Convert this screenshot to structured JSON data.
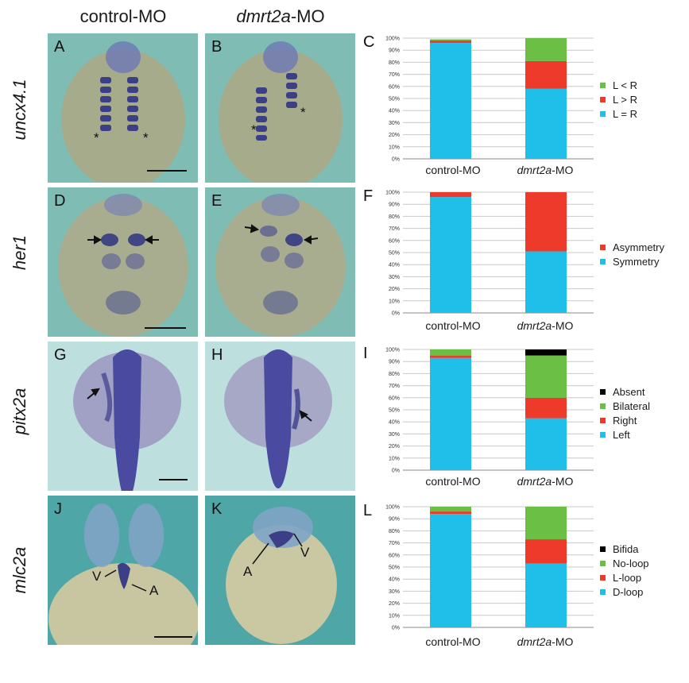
{
  "columns": {
    "control": "control-MO",
    "morphant_gene": "dmrt2a",
    "morphant_suffix": "-MO"
  },
  "rows": [
    "uncx4.1",
    "her1",
    "pitx2a",
    "mlc2a"
  ],
  "panel_letters": [
    "A",
    "B",
    "D",
    "E",
    "G",
    "H",
    "J",
    "K"
  ],
  "annotations": {
    "star": "*",
    "V": "V",
    "A": "A"
  },
  "colors": {
    "light_blue": "#1fbfe9",
    "red": "#ee3a2a",
    "green": "#6cbf45",
    "black": "#000000",
    "grid": "#c8c8c8"
  },
  "chart_data": [
    {
      "letter": "C",
      "type": "bar",
      "stacked": true,
      "categories": [
        "control-MO",
        "dmrt2a-MO"
      ],
      "series": [
        {
          "name": "L = R",
          "color": "#1fbfe9",
          "values": [
            96,
            58
          ]
        },
        {
          "name": "L > R",
          "color": "#ee3a2a",
          "values": [
            2,
            23
          ]
        },
        {
          "name": "L < R",
          "color": "#6cbf45",
          "values": [
            1,
            19
          ]
        }
      ],
      "ylim": [
        0,
        100
      ],
      "yticks": [
        "0%",
        "10%",
        "20%",
        "30%",
        "40%",
        "50%",
        "60%",
        "70%",
        "80%",
        "90%",
        "100%"
      ],
      "grid": true,
      "legend": "right"
    },
    {
      "letter": "F",
      "type": "bar",
      "stacked": true,
      "categories": [
        "control-MO",
        "dmrt2a-MO"
      ],
      "series": [
        {
          "name": "Symmetry",
          "color": "#1fbfe9",
          "values": [
            96,
            51
          ]
        },
        {
          "name": "Asymmetry",
          "color": "#ee3a2a",
          "values": [
            4,
            49
          ]
        }
      ],
      "ylim": [
        0,
        100
      ],
      "yticks": [
        "0%",
        "10%",
        "20%",
        "30%",
        "40%",
        "50%",
        "60%",
        "70%",
        "80%",
        "90%",
        "100%"
      ],
      "grid": true,
      "legend": "right"
    },
    {
      "letter": "I",
      "type": "bar",
      "stacked": true,
      "categories": [
        "control-MO",
        "dmrt2a-MO"
      ],
      "series": [
        {
          "name": "Left",
          "color": "#1fbfe9",
          "values": [
            93,
            43
          ]
        },
        {
          "name": "Right",
          "color": "#ee3a2a",
          "values": [
            2,
            17
          ]
        },
        {
          "name": "Bilateral",
          "color": "#6cbf45",
          "values": [
            5,
            35
          ]
        },
        {
          "name": "Absent",
          "color": "#000000",
          "values": [
            0,
            5
          ]
        }
      ],
      "ylim": [
        0,
        100
      ],
      "yticks": [
        "0%",
        "10%",
        "20%",
        "30%",
        "40%",
        "50%",
        "60%",
        "70%",
        "80%",
        "90%",
        "100%"
      ],
      "grid": true,
      "legend": "right"
    },
    {
      "letter": "L",
      "type": "bar",
      "stacked": true,
      "categories": [
        "control-MO",
        "dmrt2a-MO"
      ],
      "series": [
        {
          "name": "D-loop",
          "color": "#1fbfe9",
          "values": [
            94,
            53
          ]
        },
        {
          "name": "L-loop",
          "color": "#ee3a2a",
          "values": [
            2,
            20
          ]
        },
        {
          "name": "No-loop",
          "color": "#6cbf45",
          "values": [
            4,
            27
          ]
        },
        {
          "name": "Bifida",
          "color": "#000000",
          "values": [
            0,
            0
          ]
        }
      ],
      "ylim": [
        0,
        100
      ],
      "yticks": [
        "0%",
        "10%",
        "20%",
        "30%",
        "40%",
        "50%",
        "60%",
        "70%",
        "80%",
        "90%",
        "100%"
      ],
      "grid": true,
      "legend": "right"
    }
  ]
}
